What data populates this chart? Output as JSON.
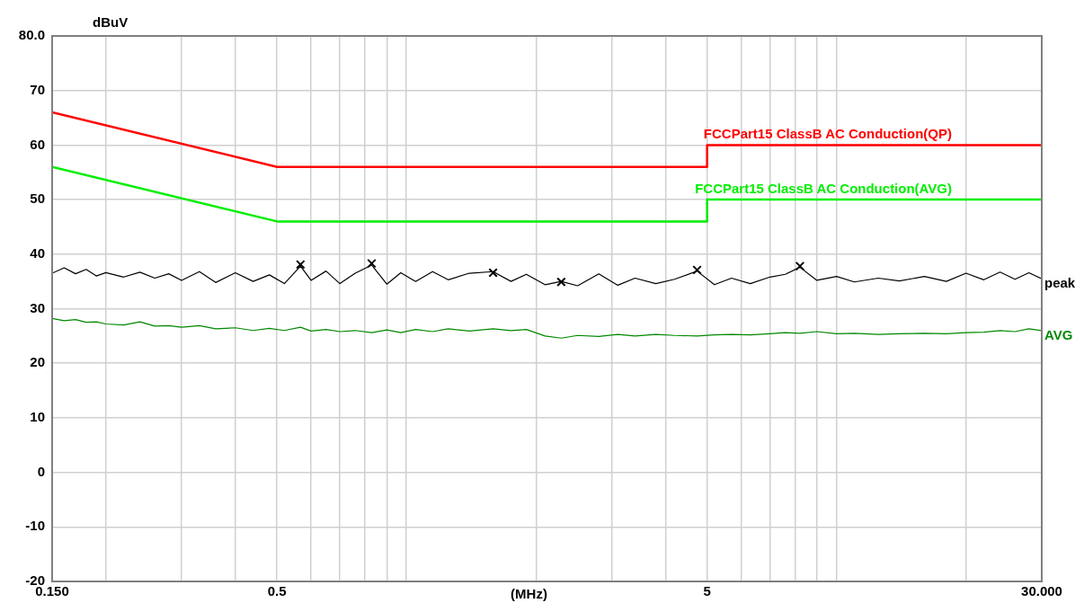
{
  "chart_data": {
    "type": "line",
    "xlabel": "(MHz)",
    "ylabel": "dBuV",
    "log": "x",
    "grid": true,
    "legend": false,
    "line_style": "solid",
    "xlim": [
      0.15,
      30
    ],
    "ylim": [
      -20,
      80
    ],
    "xticks": [
      {
        "value": 0.15,
        "label": "0.150"
      },
      {
        "value": 0.2,
        "label": null
      },
      {
        "value": 0.3,
        "label": null
      },
      {
        "value": 0.4,
        "label": null
      },
      {
        "value": 0.5,
        "label": "0.5"
      },
      {
        "value": 0.6,
        "label": null
      },
      {
        "value": 0.7,
        "label": null
      },
      {
        "value": 0.8,
        "label": null
      },
      {
        "value": 0.9,
        "label": null
      },
      {
        "value": 1,
        "label": null
      },
      {
        "value": 2,
        "label": null
      },
      {
        "value": 3,
        "label": null
      },
      {
        "value": 4,
        "label": null
      },
      {
        "value": 5,
        "label": "5"
      },
      {
        "value": 6,
        "label": null
      },
      {
        "value": 7,
        "label": null
      },
      {
        "value": 8,
        "label": null
      },
      {
        "value": 9,
        "label": null
      },
      {
        "value": 10,
        "label": null
      },
      {
        "value": 20,
        "label": null
      },
      {
        "value": 30,
        "label": "30.000"
      }
    ],
    "yticks": [
      -20,
      -10,
      0,
      10,
      20,
      30,
      40,
      50,
      60,
      70,
      {
        "value": 80,
        "label": "80.0"
      }
    ],
    "series": [
      {
        "name": "FCCPart15 ClassB AC Conduction(QP)",
        "color": "#ff0000",
        "marker": "none",
        "x": [
          0.15,
          0.5,
          5,
          5,
          30
        ],
        "values": [
          66,
          56,
          56,
          60,
          60
        ]
      },
      {
        "name": "FCCPart15 ClassB AC Conduction(AVG)",
        "color": "#00ee00",
        "marker": "none",
        "x": [
          0.15,
          0.5,
          5,
          5,
          30
        ],
        "values": [
          56,
          46,
          46,
          50,
          50
        ]
      },
      {
        "name": "peak",
        "color": "#000000",
        "marker": "none",
        "x": [
          0.15,
          0.16,
          0.17,
          0.18,
          0.19,
          0.2,
          0.22,
          0.24,
          0.26,
          0.28,
          0.3,
          0.33,
          0.36,
          0.4,
          0.44,
          0.48,
          0.52,
          0.567,
          0.6,
          0.65,
          0.7,
          0.76,
          0.83,
          0.9,
          0.97,
          1.05,
          1.15,
          1.25,
          1.4,
          1.59,
          1.75,
          1.9,
          2.1,
          2.29,
          2.5,
          2.8,
          3.1,
          3.4,
          3.8,
          4.2,
          4.74,
          5.2,
          5.7,
          6.3,
          7,
          7.6,
          8.22,
          9,
          10,
          11,
          12.5,
          14,
          16,
          18,
          20,
          22,
          24,
          26,
          28,
          30
        ],
        "values": [
          36.5,
          37.5,
          36.4,
          37.2,
          36.0,
          36.6,
          35.8,
          36.7,
          35.6,
          36.4,
          35.2,
          36.8,
          34.8,
          36.6,
          35.0,
          36.2,
          34.6,
          37.8,
          35.2,
          36.9,
          34.6,
          36.5,
          38.0,
          34.5,
          36.6,
          35.0,
          36.8,
          35.3,
          36.5,
          36.8,
          35.0,
          36.3,
          34.4,
          35.0,
          34.2,
          36.4,
          34.3,
          35.6,
          34.6,
          35.4,
          36.9,
          34.4,
          35.6,
          34.6,
          35.8,
          36.3,
          37.6,
          35.2,
          35.9,
          34.9,
          35.6,
          35.1,
          35.9,
          35.0,
          36.5,
          35.3,
          36.7,
          35.4,
          36.6,
          35.5
        ]
      },
      {
        "name": "AVG",
        "color": "#008800",
        "marker": "none",
        "x": [
          0.15,
          0.16,
          0.17,
          0.18,
          0.19,
          0.2,
          0.22,
          0.24,
          0.26,
          0.28,
          0.3,
          0.33,
          0.36,
          0.4,
          0.44,
          0.48,
          0.52,
          0.567,
          0.6,
          0.65,
          0.7,
          0.76,
          0.83,
          0.9,
          0.97,
          1.05,
          1.15,
          1.25,
          1.4,
          1.59,
          1.75,
          1.9,
          2.1,
          2.29,
          2.5,
          2.8,
          3.1,
          3.4,
          3.8,
          4.2,
          4.74,
          5.2,
          5.7,
          6.3,
          7,
          7.6,
          8.22,
          9,
          10,
          11,
          12.5,
          14,
          16,
          18,
          20,
          22,
          24,
          26,
          28,
          30
        ],
        "values": [
          28.2,
          27.8,
          28.0,
          27.5,
          27.6,
          27.2,
          27.0,
          27.6,
          26.8,
          26.9,
          26.6,
          26.9,
          26.3,
          26.5,
          26.0,
          26.4,
          26.0,
          26.6,
          25.9,
          26.2,
          25.8,
          26.0,
          25.6,
          26.1,
          25.6,
          26.2,
          25.8,
          26.3,
          25.9,
          26.3,
          26.0,
          26.2,
          25.0,
          24.6,
          25.1,
          24.9,
          25.3,
          25.0,
          25.3,
          25.1,
          25.0,
          25.2,
          25.3,
          25.2,
          25.4,
          25.6,
          25.5,
          25.8,
          25.4,
          25.5,
          25.3,
          25.4,
          25.5,
          25.4,
          25.6,
          25.7,
          26.0,
          25.8,
          26.3,
          26.0
        ]
      },
      {
        "type": "scatter",
        "color": "#000000",
        "marker": "cross",
        "x": [
          0.567,
          0.83,
          1.59,
          2.29,
          4.74,
          8.22
        ],
        "values": [
          38.1,
          38.3,
          36.6,
          34.9,
          37.1,
          37.8
        ]
      }
    ]
  }
}
